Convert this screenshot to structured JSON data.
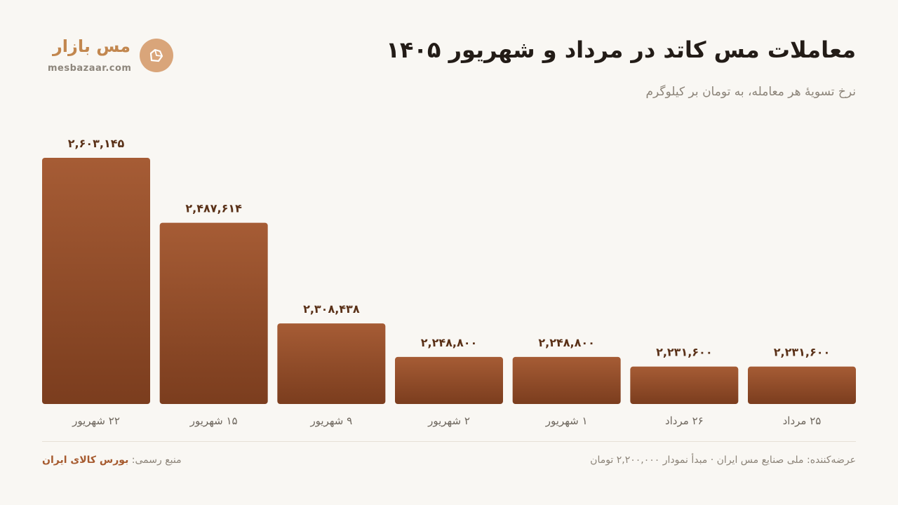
{
  "header": {
    "title": "معاملات مس کاتد در مرداد و شهریور ۱۴۰۵",
    "subtitle": "نرخ تسویهٔ هر معامله، به تومان بر کیلوگرم"
  },
  "brand": {
    "name": "مس بازار",
    "url": "mesbazaar.com",
    "icon": "copper-nugget-icon"
  },
  "chart_data": {
    "type": "bar",
    "categories": [
      "۲۲ شهریور",
      "۱۵ شهریور",
      "۹ شهریور",
      "۲ شهریور",
      "۱ شهریور",
      "۲۶ مرداد",
      "۲۵ مرداد"
    ],
    "values": [
      2603145,
      2487614,
      2308438,
      2248800,
      2248800,
      2231600,
      2231600
    ],
    "value_labels": [
      "۲,۶۰۳,۱۴۵",
      "۲,۴۸۷,۶۱۴",
      "۲,۳۰۸,۴۳۸",
      "۲,۲۴۸,۸۰۰",
      "۲,۲۴۸,۸۰۰",
      "۲,۲۳۱,۶۰۰",
      "۲,۲۳۱,۶۰۰"
    ],
    "ylim": [
      2200000,
      2603145
    ],
    "grid": false,
    "colors": {
      "bar_top": "#a65c35",
      "bar_bottom": "#7b3d1e",
      "value_label": "#5a3118",
      "category_label": "#6e675e"
    }
  },
  "footer": {
    "provider": "عرضه‌کننده: ملی صنایع مس ایران · مبدأ نمودار ۲,۲۰۰,۰۰۰ تومان",
    "source_label": "منبع رسمی:",
    "source_value": "بورس کالای ایران"
  }
}
